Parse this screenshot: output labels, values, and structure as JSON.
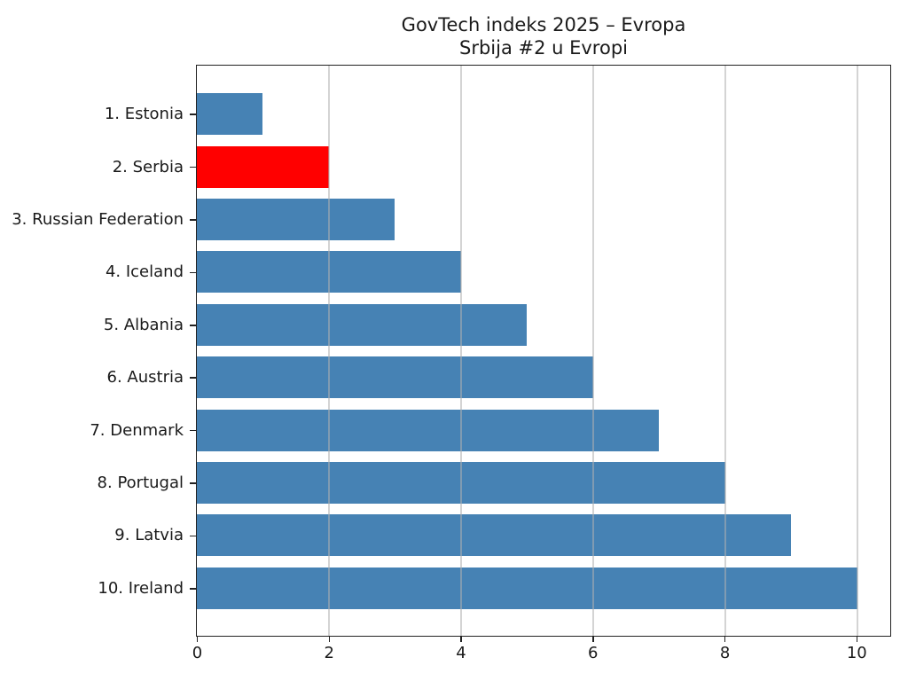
{
  "chart_data": {
    "type": "bar",
    "orientation": "horizontal",
    "title": "GovTech indeks 2025 – Evropa",
    "subtitle": "Srbija #2 u Evropi",
    "categories": [
      "1. Estonia",
      "2. Serbia",
      "3. Russian Federation",
      "4. Iceland",
      "5. Albania",
      "6. Austria",
      "7. Denmark",
      "8. Portugal",
      "9. Latvia",
      "10. Ireland"
    ],
    "values": [
      1,
      2,
      3,
      4,
      5,
      6,
      7,
      8,
      9,
      10
    ],
    "highlight_index": 1,
    "highlight_category": "2. Serbia",
    "xlabel": "",
    "ylabel": "",
    "xlim": [
      0,
      10.5
    ],
    "xticks": [
      0,
      2,
      4,
      6,
      8,
      10
    ],
    "xtick_labels": [
      "0",
      "2",
      "4",
      "6",
      "8",
      "10"
    ],
    "grid": "vertical, drawn above bars",
    "legend": "none",
    "colors": {
      "bar_default": "#4682b4",
      "bar_highlight": "#ff0000",
      "grid": "rgba(176,176,176,0.55)",
      "spine": "#222222",
      "text": "#1a1a1a",
      "background": "#ffffff"
    }
  }
}
